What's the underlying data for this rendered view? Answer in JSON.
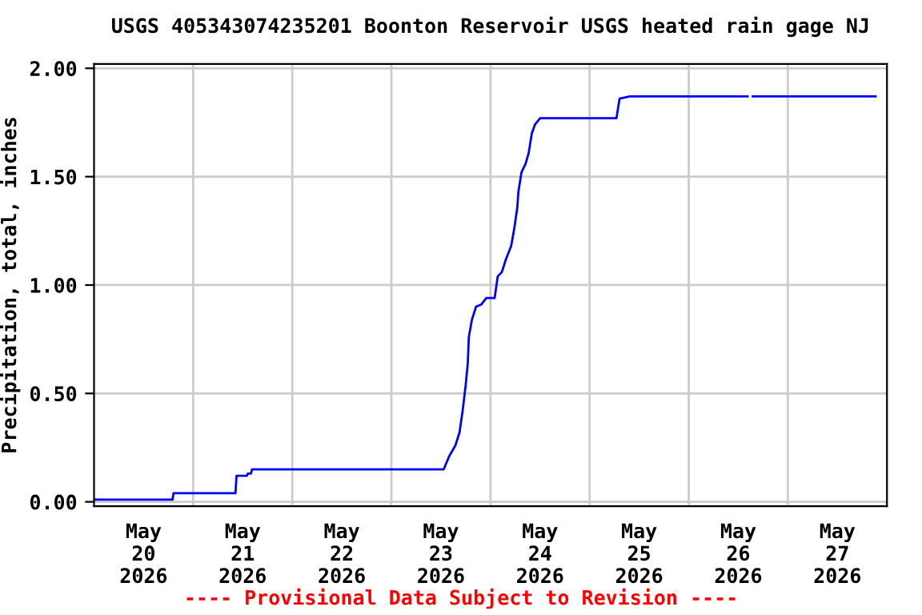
{
  "chart_data": {
    "type": "line",
    "title": "USGS 405343074235201 Boonton Reservoir USGS heated rain gage NJ",
    "ylabel": "Precipitation, total, inches",
    "annotations": [
      "---- Provisional Data Subject to Revision ----"
    ],
    "x": [
      "2026-05-20T00:00",
      "2026-05-20T19:00",
      "2026-05-20T19:15",
      "2026-05-21T10:15",
      "2026-05-21T10:30",
      "2026-05-21T13:00",
      "2026-05-21T13:15",
      "2026-05-21T14:00",
      "2026-05-21T14:15",
      "2026-05-23T12:40",
      "2026-05-23T14:00",
      "2026-05-23T15:30",
      "2026-05-23T16:30",
      "2026-05-23T17:15",
      "2026-05-23T18:00",
      "2026-05-23T18:30",
      "2026-05-23T18:45",
      "2026-05-23T19:30",
      "2026-05-23T20:30",
      "2026-05-23T21:45",
      "2026-05-23T23:00",
      "2026-05-24T01:00",
      "2026-05-24T01:45",
      "2026-05-24T02:45",
      "2026-05-24T03:45",
      "2026-05-24T05:00",
      "2026-05-24T05:45",
      "2026-05-24T06:30",
      "2026-05-24T06:45",
      "2026-05-24T07:30",
      "2026-05-24T08:30",
      "2026-05-24T09:15",
      "2026-05-24T10:00",
      "2026-05-24T10:45",
      "2026-05-24T12:00",
      "2026-05-25T06:30",
      "2026-05-25T07:15",
      "2026-05-25T09:45",
      "2026-05-26T14:15",
      "2026-05-26T14:30",
      "2026-05-26T15:30",
      "2026-05-27T21:15"
    ],
    "series": [
      {
        "color": "#0000ff",
        "values": [
          0.01,
          0.01,
          0.04,
          0.04,
          0.12,
          0.12,
          0.13,
          0.13,
          0.15,
          0.15,
          0.21,
          0.26,
          0.32,
          0.42,
          0.54,
          0.64,
          0.76,
          0.84,
          0.9,
          0.91,
          0.94,
          0.94,
          1.04,
          1.06,
          1.12,
          1.18,
          1.26,
          1.36,
          1.43,
          1.52,
          1.56,
          1.61,
          1.7,
          1.74,
          1.77,
          1.77,
          1.86,
          1.87,
          1.87,
          null,
          1.87,
          1.87
        ]
      }
    ],
    "xlim": [
      "2026-05-20T00:00",
      "2026-05-28T00:00"
    ],
    "xticks": [
      {
        "value": "2026-05-20T12:00",
        "label": "May\n20\n2026"
      },
      {
        "value": "2026-05-21T00:00",
        "label": null
      },
      {
        "value": "2026-05-21T12:00",
        "label": "May\n21\n2026"
      },
      {
        "value": "2026-05-22T00:00",
        "label": null
      },
      {
        "value": "2026-05-22T12:00",
        "label": "May\n22\n2026"
      },
      {
        "value": "2026-05-23T00:00",
        "label": null
      },
      {
        "value": "2026-05-23T12:00",
        "label": "May\n23\n2026"
      },
      {
        "value": "2026-05-24T00:00",
        "label": null
      },
      {
        "value": "2026-05-24T12:00",
        "label": "May\n24\n2026"
      },
      {
        "value": "2026-05-25T00:00",
        "label": null
      },
      {
        "value": "2026-05-25T12:00",
        "label": "May\n25\n2026"
      },
      {
        "value": "2026-05-26T00:00",
        "label": null
      },
      {
        "value": "2026-05-26T12:00",
        "label": "May\n26\n2026"
      },
      {
        "value": "2026-05-27T00:00",
        "label": null
      },
      {
        "value": "2026-05-27T12:00",
        "label": "May\n27\n2026"
      }
    ],
    "ylim": [
      -0.02,
      2.02
    ],
    "yticks": [
      {
        "value": 0,
        "label": "0.00"
      },
      {
        "value": 0.5,
        "label": "0.50"
      },
      {
        "value": 1,
        "label": "1.00"
      },
      {
        "value": 1.5,
        "label": "1.50"
      },
      {
        "value": 2,
        "label": "2.00"
      }
    ],
    "grid": true,
    "legend": false
  }
}
